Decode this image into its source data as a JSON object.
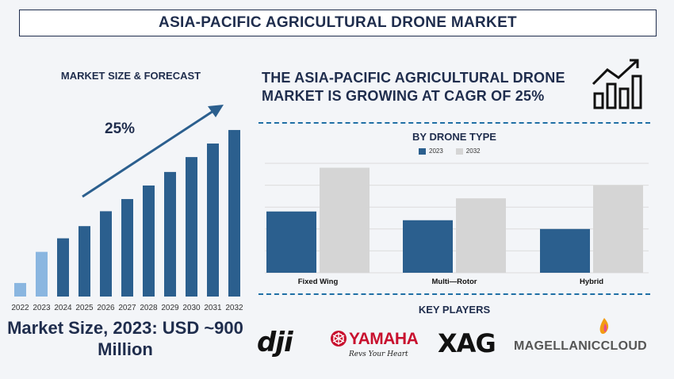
{
  "title": "ASIA-PACIFIC AGRICULTURAL DRONE MARKET",
  "left_panel": {
    "heading": "MARKET SIZE & FORECAST",
    "cagr_label": "25%",
    "market_size_text": "Market Size, 2023: USD ~900 Million"
  },
  "headline": "THE ASIA-PACIFIC AGRICULTURAL DRONE MARKET IS GROWING AT CAGR OF 25%",
  "drone_type_heading": "BY DRONE TYPE",
  "key_players_heading": "KEY PLAYERS",
  "key_players": {
    "dji": "dji",
    "yamaha": "YAMAHA",
    "yamaha_tagline": "Revs Your Heart",
    "xag": "XAG",
    "magellanic": "MAGELLANICCLOUD"
  },
  "colors": {
    "navy": "#1f2d4d",
    "bar_dark": "#2b5f8e",
    "bar_light_2022": "#8ab6e0",
    "bar_2032": "#d5d5d5",
    "yamaha_red": "#c8102e",
    "magellanic_orange": "#f39c12",
    "magellanic_gray": "#555555"
  },
  "chart_data": [
    {
      "type": "bar",
      "title": "MARKET SIZE & FORECAST",
      "categories": [
        "2022",
        "2023",
        "2024",
        "2025",
        "2026",
        "2027",
        "2028",
        "2029",
        "2030",
        "2031",
        "2032"
      ],
      "values": [
        1,
        3.3,
        4.3,
        5.2,
        6.3,
        7.2,
        8.2,
        9.2,
        10.3,
        11.3,
        12.3
      ],
      "annotation": "25%",
      "ylim": [
        0,
        13
      ]
    },
    {
      "type": "bar",
      "title": "BY DRONE TYPE",
      "categories": [
        "Fixed Wing",
        "Multi—Rotor",
        "Hybrid"
      ],
      "series": [
        {
          "name": "2023",
          "values": [
            28,
            24,
            20
          ]
        },
        {
          "name": "2032",
          "values": [
            48,
            34,
            40
          ]
        }
      ],
      "ylim": [
        0,
        50
      ],
      "grid": true,
      "legend_position": "top-center"
    }
  ]
}
